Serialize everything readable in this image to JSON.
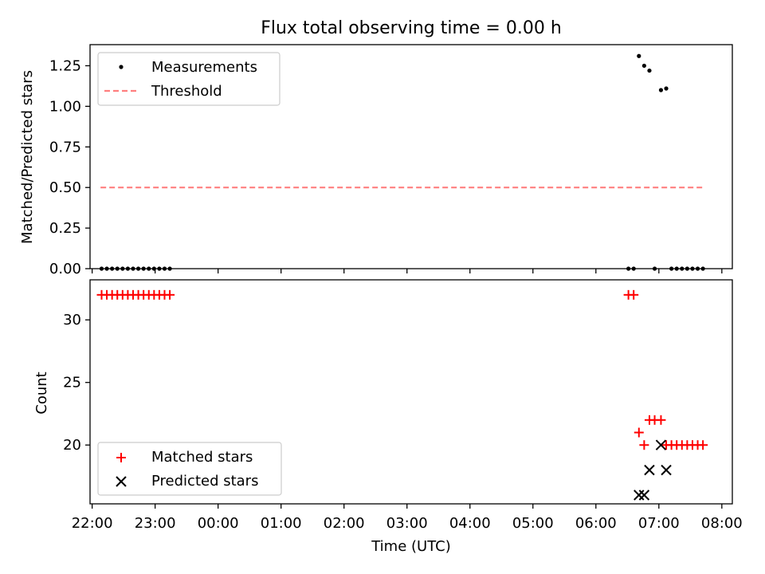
{
  "chart_data": [
    {
      "type": "scatter",
      "title": "Flux total observing time = 0.00 h",
      "xlabel": "",
      "ylabel": "Matched/Predicted stars",
      "ylim": [
        0,
        1.38
      ],
      "yticks": [
        0.0,
        0.25,
        0.5,
        0.75,
        1.0,
        1.25
      ],
      "ytick_labels": [
        "0.00",
        "0.25",
        "0.50",
        "0.75",
        "1.00",
        "1.25"
      ],
      "legend_position": "top-left",
      "grid": false,
      "series": [
        {
          "name": "Measurements",
          "marker": "dot",
          "color": "#000000",
          "x": [
            "22:09",
            "22:14",
            "22:19",
            "22:24",
            "22:29",
            "22:34",
            "22:39",
            "22:44",
            "22:49",
            "22:54",
            "22:59",
            "23:04",
            "23:09",
            "23:14",
            "06:31",
            "06:36",
            "06:41",
            "06:46",
            "06:51",
            "06:56",
            "07:02",
            "07:07",
            "07:12",
            "07:17",
            "07:22",
            "07:27",
            "07:32",
            "07:37",
            "07:42"
          ],
          "y": [
            0,
            0,
            0,
            0,
            0,
            0,
            0,
            0,
            0,
            0,
            0,
            0,
            0,
            0,
            0,
            0,
            1.31,
            1.25,
            1.22,
            0,
            1.1,
            1.11,
            0,
            0,
            0,
            0,
            0,
            0,
            0
          ]
        },
        {
          "name": "Threshold",
          "marker": "dashed-line",
          "color": "#ff7f7f",
          "x": [
            "22:08",
            "07:43"
          ],
          "y": [
            0.5,
            0.5
          ]
        }
      ]
    },
    {
      "type": "scatter",
      "title": "",
      "xlabel": "Time (UTC)",
      "ylabel": "Count",
      "ylim": [
        15.3,
        33.2
      ],
      "yticks": [
        20,
        25,
        30
      ],
      "ytick_labels": [
        "20",
        "25",
        "30"
      ],
      "xlim": [
        "21:58",
        "08:10"
      ],
      "xticks": [
        "22:00",
        "23:00",
        "00:00",
        "01:00",
        "02:00",
        "03:00",
        "04:00",
        "05:00",
        "06:00",
        "07:00",
        "08:00"
      ],
      "legend_position": "bottom-left",
      "grid": false,
      "series": [
        {
          "name": "Matched stars",
          "marker": "plus",
          "color": "#ff0000",
          "x": [
            "22:09",
            "22:14",
            "22:19",
            "22:24",
            "22:29",
            "22:34",
            "22:39",
            "22:44",
            "22:49",
            "22:54",
            "22:59",
            "23:04",
            "23:09",
            "23:14",
            "06:31",
            "06:36",
            "06:41",
            "06:46",
            "06:51",
            "06:56",
            "07:02",
            "07:07",
            "07:12",
            "07:17",
            "07:22",
            "07:27",
            "07:32",
            "07:37",
            "07:42"
          ],
          "y": [
            32,
            32,
            32,
            32,
            32,
            32,
            32,
            32,
            32,
            32,
            32,
            32,
            32,
            32,
            32,
            32,
            21,
            20,
            22,
            22,
            22,
            20,
            20,
            20,
            20,
            20,
            20,
            20,
            20
          ]
        },
        {
          "name": "Predicted stars",
          "marker": "x",
          "color": "#000000",
          "x": [
            "06:41",
            "06:46",
            "06:51",
            "07:02",
            "07:07"
          ],
          "y": [
            16,
            16,
            18,
            20,
            18
          ]
        }
      ]
    }
  ]
}
